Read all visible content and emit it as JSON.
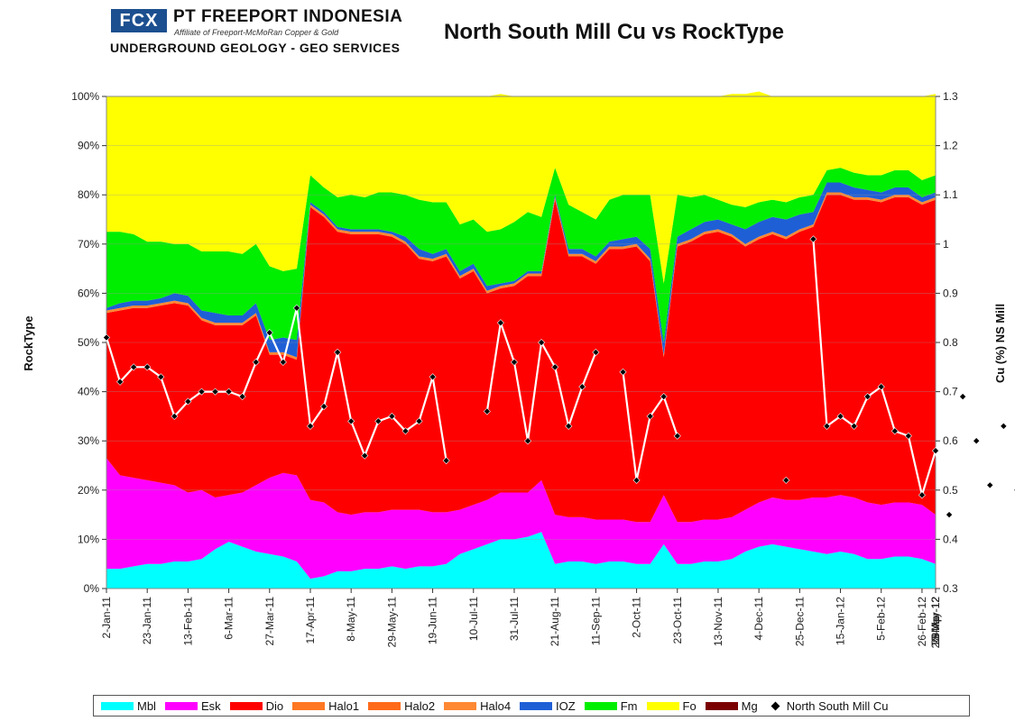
{
  "header": {
    "logo_mark": "FCX",
    "company": "PT FREEPORT INDONESIA",
    "tagline": "Affiliate of Freeport-McMoRan Copper & Gold",
    "department": "UNDERGROUND GEOLOGY - GEO SERVICES"
  },
  "chart_data": {
    "type": "area",
    "title": "North South Mill Cu vs RockType",
    "ylabel": "RockType",
    "y2label": "Cu (%) NS Mill",
    "ylim": [
      0,
      100
    ],
    "y2lim": [
      0.3,
      1.3
    ],
    "y_ticks": [
      "0%",
      "10%",
      "20%",
      "30%",
      "40%",
      "50%",
      "60%",
      "70%",
      "80%",
      "90%",
      "100%"
    ],
    "y2_ticks": [
      "0.3",
      "0.4",
      "0.5",
      "0.6",
      "0.7",
      "0.8",
      "0.9",
      "1",
      "1.1",
      "1.2",
      "1.3"
    ],
    "x_ticks": [
      "2-Jan-11",
      "23-Jan-11",
      "13-Feb-11",
      "6-Mar-11",
      "27-Mar-11",
      "17-Apr-11",
      "8-May-11",
      "29-May-11",
      "19-Jun-11",
      "10-Jul-11",
      "31-Jul-11",
      "21-Aug-11",
      "11-Sep-11",
      "2-Oct-11",
      "23-Oct-11",
      "13-Nov-11",
      "4-Dec-11",
      "25-Dec-11",
      "15-Jan-12",
      "5-Feb-12",
      "26-Feb-12",
      "18-Mar-12",
      "8-Apr-12",
      "29-Apr-12",
      "20-May-12"
    ],
    "grid": true,
    "legend_position": "bottom",
    "stack_series": [
      {
        "name": "Mbl",
        "color": "#00ffff",
        "values": [
          4,
          4,
          4.5,
          5,
          5,
          5.5,
          5.5,
          6,
          8,
          9.5,
          8.5,
          7.5,
          7,
          6.5,
          5.5,
          2,
          2.5,
          3.5,
          3.5,
          4,
          4,
          4.5,
          4,
          4.5,
          4.5,
          5,
          7,
          8,
          9,
          10,
          10,
          10.5,
          11.5,
          5,
          5.5,
          5.5,
          5,
          5.5,
          5.5,
          5,
          5,
          9,
          5,
          5,
          5.5,
          5.5,
          6,
          7.5,
          8.5,
          9,
          8.5,
          8,
          7.5,
          7,
          7.5,
          7,
          6,
          6,
          6.5,
          6.5,
          6,
          5
        ]
      },
      {
        "name": "Esk",
        "color": "#ff00ff",
        "values": [
          22.5,
          19,
          18,
          17,
          16.5,
          15.5,
          14,
          14,
          10.5,
          9.5,
          11,
          13.5,
          15.5,
          17,
          17.5,
          16,
          15,
          12,
          11.5,
          11.5,
          11.5,
          11.5,
          12,
          11.5,
          11,
          10.5,
          9,
          9,
          9,
          9.5,
          9.5,
          9,
          10.5,
          10,
          9,
          9,
          9,
          8.5,
          8.5,
          8.5,
          8.5,
          10,
          8.5,
          8.5,
          8.5,
          8.5,
          8.5,
          8.5,
          9,
          9.5,
          9.5,
          10,
          11,
          11.5,
          11.5,
          11.5,
          11.5,
          11,
          11,
          11,
          11,
          10
        ]
      },
      {
        "name": "Dio",
        "color": "#ff0000",
        "values": [
          29.5,
          33.5,
          34.5,
          35,
          36,
          37,
          38,
          34.5,
          35,
          34.5,
          34,
          34.5,
          25,
          24,
          23.5,
          59.5,
          58,
          57,
          57,
          56.5,
          56.5,
          55.5,
          54,
          51,
          51,
          52,
          47,
          47.5,
          42,
          41.5,
          42,
          44,
          41.5,
          64,
          53,
          53,
          52,
          55,
          55,
          56,
          53,
          28,
          56,
          57,
          58,
          58.5,
          57,
          53.5,
          53.5,
          53.5,
          53,
          54.5,
          55,
          61.5,
          61,
          60.5,
          61.5,
          61.5,
          62,
          62,
          61,
          64
        ]
      },
      {
        "name": "Halo1",
        "color": "#ff7722",
        "values": [
          0,
          0,
          0,
          0,
          0,
          0,
          0,
          0,
          0,
          0,
          0,
          0,
          0,
          0,
          0,
          0,
          0,
          0,
          0,
          0,
          0,
          0,
          0,
          0,
          0,
          0,
          0,
          0,
          0,
          0,
          0,
          0,
          0,
          0,
          0,
          0,
          0,
          0,
          0,
          0,
          0,
          0,
          0,
          0,
          0,
          0,
          0,
          0,
          0,
          0,
          0,
          0,
          0,
          0,
          0,
          0,
          0,
          0,
          0,
          0,
          0,
          0
        ]
      },
      {
        "name": "Halo2",
        "color": "#ff6a1a",
        "values": [
          0,
          0,
          0,
          0,
          0,
          0,
          0,
          0,
          0,
          0,
          0,
          0,
          0,
          0,
          0,
          0,
          0,
          0,
          0,
          0,
          0,
          0,
          0,
          0,
          0,
          0,
          0,
          0,
          0,
          0,
          0,
          0,
          0,
          0,
          0,
          0,
          0,
          0,
          0,
          0,
          0,
          0,
          0,
          0,
          0,
          0,
          0,
          0,
          0,
          0,
          0,
          0,
          0,
          0,
          0,
          0,
          0,
          0,
          0,
          0,
          0,
          0
        ]
      },
      {
        "name": "Halo4",
        "color": "#ff8833",
        "values": [
          0.5,
          0.5,
          0.5,
          0.5,
          0.5,
          0.5,
          0.5,
          0.5,
          0.5,
          0.5,
          0.5,
          0.5,
          0.5,
          0.5,
          0.5,
          0.5,
          0.5,
          0.5,
          0.5,
          0.5,
          0.5,
          0.5,
          0.5,
          0.5,
          0.5,
          0.5,
          0.5,
          0.5,
          0.5,
          0.5,
          0.5,
          0.5,
          0.5,
          0.5,
          0.5,
          0.5,
          0.5,
          0.5,
          0.5,
          0.5,
          0.5,
          0.5,
          0.5,
          0.5,
          0.5,
          0.5,
          0.5,
          0.5,
          0.5,
          0.5,
          0.5,
          0.5,
          0.5,
          0.5,
          0.5,
          0.5,
          0.5,
          0.5,
          0.5,
          0.5,
          0.5,
          0.5
        ]
      },
      {
        "name": "IOZ",
        "color": "#1f5fd6",
        "values": [
          0.5,
          1,
          1,
          1,
          1,
          1.5,
          1.5,
          1.5,
          2,
          1.5,
          1.5,
          2,
          2.5,
          3,
          3.5,
          0.5,
          0.5,
          0.5,
          0.5,
          0.5,
          0.5,
          0.5,
          1,
          1.5,
          1,
          1,
          1,
          1,
          1,
          0.5,
          0.5,
          0.5,
          0.5,
          0.5,
          1,
          1,
          1,
          1,
          1.5,
          1.5,
          2,
          2.5,
          1.5,
          2,
          2,
          2,
          2,
          3,
          3,
          3,
          3.5,
          3,
          2.5,
          2,
          2,
          2,
          1.5,
          1.5,
          1.5,
          1.5,
          1,
          1
        ]
      },
      {
        "name": "Fm",
        "color": "#00ee00",
        "values": [
          15.5,
          14.5,
          13.5,
          12,
          11.5,
          10,
          10.5,
          12,
          12.5,
          13,
          12.5,
          12,
          15,
          13.5,
          14.5,
          5.5,
          5,
          6,
          7,
          6.5,
          7.5,
          8,
          8.5,
          10,
          10.5,
          9.5,
          9.5,
          9,
          11,
          11,
          12,
          12,
          11,
          5.5,
          9,
          7.5,
          7.5,
          8.5,
          9,
          8.5,
          11,
          12,
          8.5,
          6.5,
          5.5,
          4,
          4,
          4.5,
          4,
          3.5,
          3.5,
          3.5,
          3.5,
          2.5,
          3,
          3,
          3,
          3.5,
          3.5,
          3.5,
          3.5,
          3.5
        ]
      },
      {
        "name": "Fo",
        "color": "#ffff00",
        "values": [
          27.5,
          27.5,
          28,
          29.5,
          29.5,
          30,
          30,
          31.5,
          31.5,
          31.5,
          32,
          30,
          34.5,
          35.5,
          35,
          16,
          18.5,
          20.5,
          20,
          20.5,
          19.5,
          19.5,
          20,
          21,
          21.5,
          21.5,
          26,
          25,
          27.5,
          27.5,
          25.5,
          23.5,
          24.5,
          14.5,
          22,
          23.5,
          25,
          21,
          20,
          20,
          20,
          38,
          20,
          20.5,
          20,
          21,
          22.5,
          23,
          22.5,
          21,
          21.5,
          20.5,
          20,
          15,
          14.5,
          15.5,
          16,
          16,
          15,
          15,
          17,
          16.5
        ]
      },
      {
        "name": "Mg",
        "color": "#7a0000",
        "values": [
          0,
          0,
          0,
          0,
          0,
          0,
          0,
          0,
          0,
          0,
          0,
          0,
          0,
          0,
          0,
          0,
          0,
          0,
          0,
          0,
          0,
          0,
          0,
          0,
          0,
          0,
          0,
          0,
          0,
          0,
          0,
          0,
          0,
          0,
          0,
          0,
          0,
          0,
          0,
          0,
          0,
          0,
          0,
          0,
          0,
          0,
          0,
          0,
          0,
          0,
          0,
          0,
          0,
          0,
          0,
          0,
          0,
          0,
          0,
          0,
          0,
          0
        ]
      }
    ],
    "line_series": {
      "name": "North South Mill Cu",
      "marker": "diamond",
      "line_color": "#ffffff",
      "marker_color": "#000000",
      "segments": [
        {
          "start_week": 0,
          "values": [
            0.81,
            0.72,
            0.75,
            0.75,
            0.73,
            0.65,
            0.68,
            0.7,
            0.7,
            0.7,
            0.69,
            0.76,
            0.82,
            0.76,
            0.87,
            0.63,
            0.67,
            0.78,
            0.64,
            0.57,
            0.64,
            0.65,
            0.62,
            0.64,
            0.73,
            0.56
          ]
        },
        {
          "start_week": 28,
          "values": [
            0.66,
            0.84,
            0.76,
            0.6,
            0.8,
            0.75,
            0.63,
            0.71,
            0.78
          ]
        },
        {
          "start_week": 38,
          "values": [
            0.74,
            0.52,
            0.65,
            0.69,
            0.61
          ]
        },
        {
          "start_week": 50,
          "values": [
            0.52
          ]
        },
        {
          "start_week": 52,
          "values": [
            1.01,
            0.63,
            0.65,
            0.63,
            0.69,
            0.71,
            0.62,
            0.61,
            0.49,
            0.58,
            0.45,
            0.69,
            0.6,
            0.51,
            0.63,
            0.5,
            0.59,
            0.67,
            0.54,
            0.57,
            0.56
          ]
        }
      ]
    }
  }
}
